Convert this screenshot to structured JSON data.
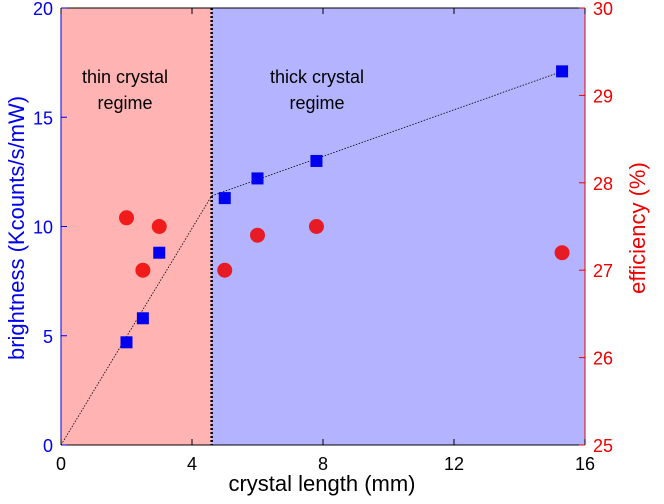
{
  "chart_data": {
    "type": "scatter",
    "xlabel": "crystal length (mm)",
    "ylabel_left": "brightness (Kcounts/s/mW)",
    "ylabel_right": "efficiency (%)",
    "xlim": [
      0,
      16
    ],
    "ylim_left": [
      0,
      20
    ],
    "ylim_right": [
      25,
      30
    ],
    "x_ticks": [
      0,
      4,
      8,
      12,
      16
    ],
    "y_ticks_left": [
      0,
      5,
      10,
      15,
      20
    ],
    "y_ticks_right": [
      25,
      26,
      27,
      28,
      29,
      30
    ],
    "regions": [
      {
        "name": "thin",
        "label_lines": [
          "thin crystal",
          "regime"
        ],
        "x_range": [
          0,
          4.6
        ],
        "color": "#ffb3b3"
      },
      {
        "name": "thick",
        "label_lines": [
          "thick crystal",
          "regime"
        ],
        "x_range": [
          4.6,
          16
        ],
        "color": "#b3b3ff"
      }
    ],
    "boundary_x": 4.6,
    "series": [
      {
        "name": "brightness",
        "axis": "left",
        "marker": "square",
        "color": "#0000ee",
        "x": [
          2.0,
          2.5,
          3.0,
          5.0,
          6.0,
          7.8,
          15.3
        ],
        "y": [
          4.7,
          5.8,
          8.8,
          11.3,
          12.2,
          13.0,
          17.1
        ]
      },
      {
        "name": "efficiency",
        "axis": "right",
        "marker": "circle",
        "color": "#ee0000",
        "x": [
          2.0,
          2.5,
          3.0,
          5.0,
          6.0,
          7.8,
          15.3
        ],
        "y": [
          27.6,
          27.0,
          27.5,
          27.0,
          27.4,
          27.5,
          27.2
        ]
      }
    ],
    "fit_lines": [
      {
        "name": "thin-fit",
        "axis": "left",
        "x": [
          0,
          4.6
        ],
        "y": [
          0,
          11.4
        ]
      },
      {
        "name": "thick-fit",
        "axis": "left",
        "x": [
          4.6,
          15.3
        ],
        "y": [
          11.4,
          17.1
        ]
      }
    ],
    "colors": {
      "left_axis": "#0000ee",
      "right_axis": "#ee0000",
      "boundary": "#000000",
      "fit": "#000000"
    }
  }
}
